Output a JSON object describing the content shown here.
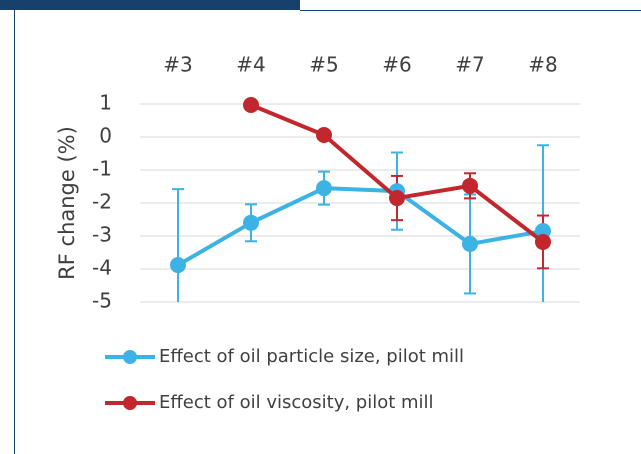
{
  "chart_data": {
    "type": "line",
    "y_label": "RF change (%)",
    "categories": [
      "#3",
      "#4",
      "#5",
      "#6",
      "#7",
      "#8"
    ],
    "ylim": [
      -5,
      1
    ],
    "yticks": [
      1,
      0,
      -1,
      -2,
      -3,
      -4,
      -5
    ],
    "grid": true,
    "series": [
      {
        "name": "Effect of oil particle size, pilot mill",
        "color": "#3cb3e4",
        "values": [
          -3.88,
          -2.6,
          -1.55,
          -1.64,
          -3.24,
          -2.85
        ],
        "errors": [
          2.3,
          0.56,
          0.5,
          1.17,
          1.5,
          2.6
        ]
      },
      {
        "name": "Effect of oil viscosity, pilot mill",
        "color": "#c1272d",
        "values": [
          null,
          0.97,
          0.06,
          -1.85,
          -1.48,
          -3.18
        ],
        "errors": [
          null,
          null,
          null,
          0.67,
          0.38,
          0.8
        ]
      }
    ]
  }
}
